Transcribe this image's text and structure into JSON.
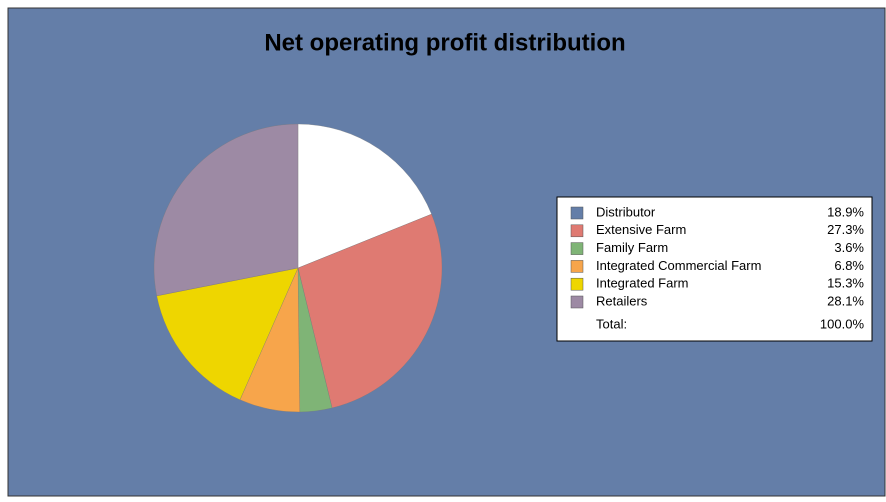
{
  "chart_data": {
    "type": "pie",
    "title": "Net operating profit distribution",
    "categories": [
      "Distributor",
      "Extensive Farm",
      "Family Farm",
      "Integrated Commercial Farm",
      "Integrated Farm",
      "Retailers"
    ],
    "values": [
      18.9,
      27.3,
      3.6,
      6.8,
      15.3,
      28.1
    ],
    "value_labels": [
      "18.9%",
      "27.3%",
      "3.6%",
      "6.8%",
      "15.3%",
      "28.1%"
    ],
    "colors": [
      "#ffffff",
      "#df7a72",
      "#7fb476",
      "#f7a54b",
      "#eed600",
      "#9d8aa4"
    ],
    "legend_colors": [
      "#647ea8",
      "#df7a72",
      "#7fb476",
      "#f7a54b",
      "#eed600",
      "#9d8aa4"
    ],
    "total": {
      "label": "Total:",
      "value": 100.0,
      "value_label": "100.0%"
    },
    "background": "#647ea8"
  }
}
